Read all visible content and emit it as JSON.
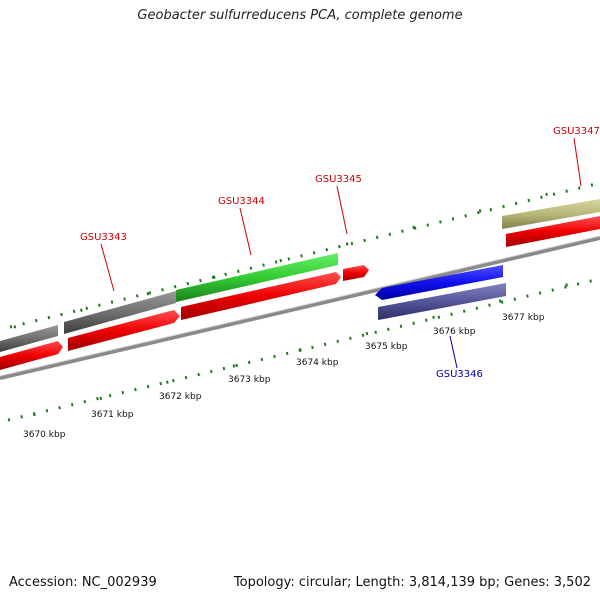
{
  "title": "Geobacter sulfurreducens PCA, complete genome",
  "footer": {
    "accession": "Accession: NC_002939",
    "summary": "Topology: circular; Length: 3,814,139 bp; Genes: 3,502"
  },
  "colors": {
    "forward_label": "#cc0000",
    "reverse_label": "#0000aa",
    "tick": "#1f7a1f",
    "backbone": "#8a8a8a"
  },
  "ruler": {
    "labels": [
      "3670 kbp",
      "3671 kbp",
      "3672 kbp",
      "3673 kbp",
      "3674 kbp",
      "3675 kbp",
      "3676 kbp",
      "3677 kbp"
    ]
  },
  "genes": [
    {
      "id": "GSU3343",
      "strand": "forward",
      "label_color": "#cc0000"
    },
    {
      "id": "GSU3344",
      "strand": "forward",
      "label_color": "#cc0000"
    },
    {
      "id": "GSU3345",
      "strand": "forward",
      "label_color": "#cc0000"
    },
    {
      "id": "GSU3346",
      "strand": "reverse",
      "label_color": "#0000aa"
    },
    {
      "id": "GSU3347",
      "strand": "forward",
      "label_color": "#cc0000"
    }
  ]
}
